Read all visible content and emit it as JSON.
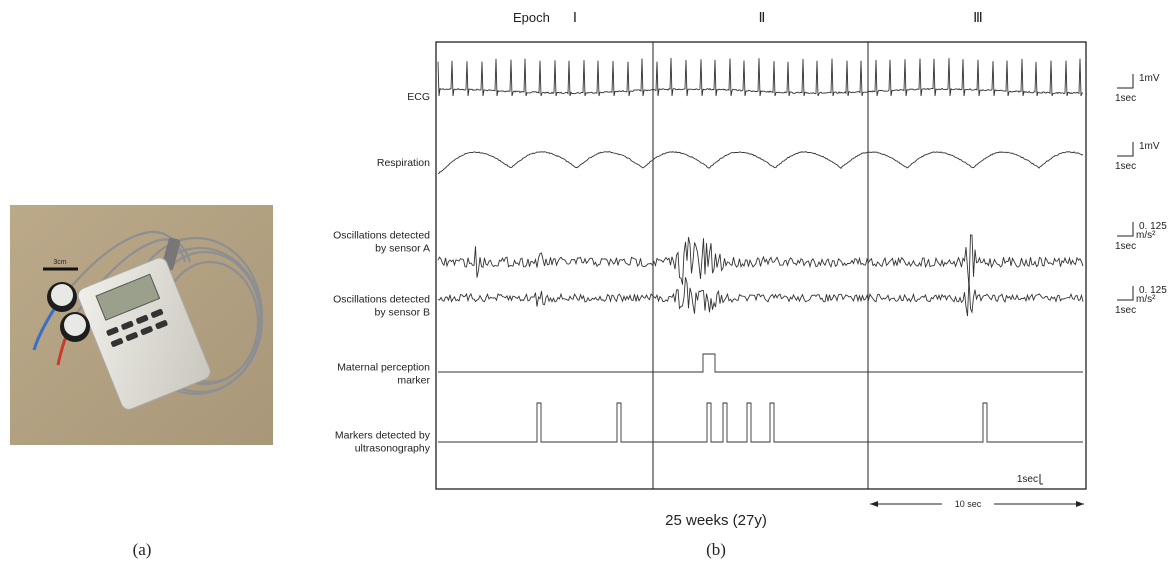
{
  "panel_a": {
    "label": "(a)",
    "scale_label": "3cm"
  },
  "panel_b": {
    "label": "(b)",
    "epoch_label": "Epoch",
    "epochs": [
      "Ⅰ",
      "Ⅱ",
      "Ⅲ"
    ],
    "channels": [
      {
        "lines": [
          "ECG"
        ],
        "scale": "1mV",
        "time": "1sec"
      },
      {
        "lines": [
          "Respiration"
        ],
        "scale": "1mV",
        "time": "1sec"
      },
      {
        "lines": [
          "Oscillations detected",
          "by sensor A"
        ],
        "scale": "0. 125",
        "unit": "m/s²",
        "time": "1sec"
      },
      {
        "lines": [
          "Oscillations detected",
          "by sensor B"
        ],
        "scale": "0. 125",
        "unit": "m/s²",
        "time": "1sec"
      },
      {
        "lines": [
          "Maternal perception",
          "marker"
        ]
      },
      {
        "lines": [
          "Markers detected by",
          "ultrasonography"
        ]
      }
    ],
    "time_scale": "1sec",
    "duration": "10 sec",
    "caption": "25 weeks (27y)"
  }
}
